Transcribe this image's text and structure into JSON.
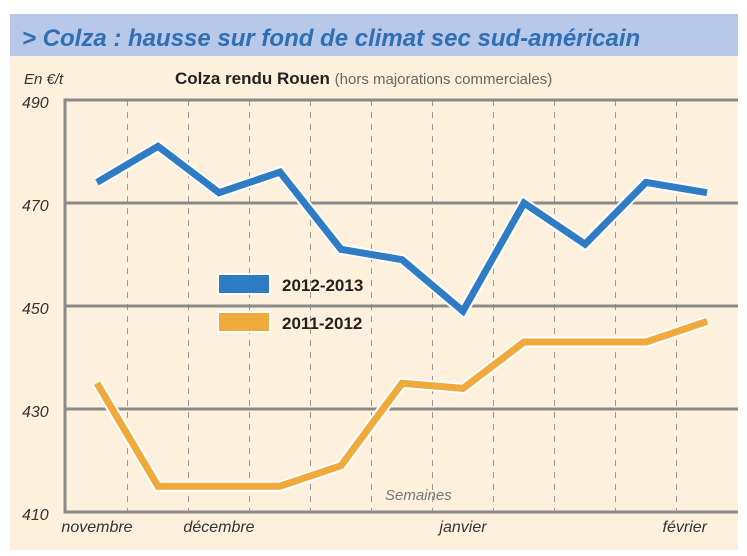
{
  "header": {
    "title": "> Colza : hausse sur fond de climat sec sud-américain"
  },
  "chart_data": {
    "type": "line",
    "title": "Colza rendu Rouen",
    "subtitle": "(hors majorations commerciales)",
    "ylabel": "En €/t",
    "xlabel": "Semaines",
    "ylim": [
      410,
      490
    ],
    "yticks": [
      410,
      430,
      450,
      470,
      490
    ],
    "xtick_labels": [
      {
        "label": "novembre",
        "index": 0
      },
      {
        "label": "décembre",
        "index": 2
      },
      {
        "label": "janvier",
        "index": 6
      },
      {
        "label": "février",
        "index": 10
      }
    ],
    "x": [
      0,
      1,
      2,
      3,
      4,
      5,
      6,
      7,
      8,
      9,
      10
    ],
    "series": [
      {
        "name": "2012-2013",
        "color": "#2f7cc4",
        "values": [
          474,
          481,
          472,
          476,
          461,
          459,
          449,
          470,
          462,
          474,
          472
        ]
      },
      {
        "name": "2011-2012",
        "color": "#f0a93b",
        "values": [
          435,
          415,
          415,
          415,
          419,
          435,
          434,
          443,
          443,
          443,
          447
        ]
      }
    ],
    "grid": "horizontal solid, vertical dashed",
    "legend_position": "center-left"
  }
}
